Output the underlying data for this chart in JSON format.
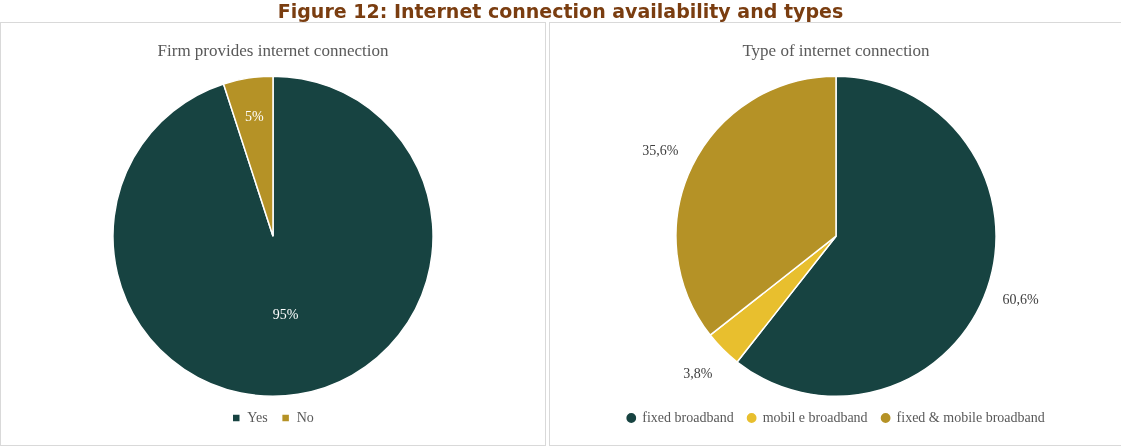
{
  "chart_data": [
    {
      "type": "other",
      "title": "Figure 12: Internet connection availability and types"
    },
    {
      "type": "pie",
      "title": "Firm provides internet connection",
      "categories": [
        "Yes",
        "No"
      ],
      "values": [
        95,
        5
      ],
      "colors": [
        "#174341",
        "#b59226"
      ],
      "value_labels": [
        "95%",
        "5%"
      ],
      "legend": "bottom"
    },
    {
      "type": "pie",
      "title": "Type of internet connection",
      "categories": [
        "fixed broadband",
        "mobil e broadband",
        "fixed & mobile broadband"
      ],
      "values": [
        60.6,
        3.8,
        35.6
      ],
      "colors": [
        "#174341",
        "#e8bf2e",
        "#b59226"
      ],
      "value_labels": [
        "60,6%",
        "3,8%",
        "35,6%"
      ],
      "legend": "bottom"
    }
  ]
}
